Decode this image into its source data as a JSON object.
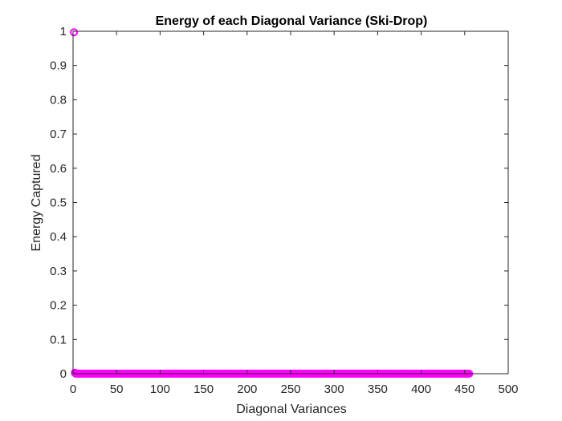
{
  "chart_data": {
    "type": "scatter",
    "title": "Energy of each Diagonal Variance (Ski-Drop)",
    "xlabel": "Diagonal Variances",
    "ylabel": "Energy Captured",
    "xlim": [
      0,
      500
    ],
    "ylim": [
      0,
      1
    ],
    "xticks": [
      0,
      50,
      100,
      150,
      200,
      250,
      300,
      350,
      400,
      450,
      500
    ],
    "yticks": [
      0,
      0.1,
      0.2,
      0.3,
      0.4,
      0.5,
      0.6,
      0.7,
      0.8,
      0.9,
      1
    ],
    "xtick_labels": [
      "0",
      "50",
      "100",
      "150",
      "200",
      "250",
      "300",
      "350",
      "400",
      "450",
      "500"
    ],
    "ytick_labels": [
      "0",
      "0.1",
      "0.2",
      "0.3",
      "0.4",
      "0.5",
      "0.6",
      "0.7",
      "0.8",
      "0.9",
      "1"
    ],
    "grid": false,
    "marker": "circle-open",
    "marker_color": "#ff00ff",
    "series": [
      {
        "x_start": 1,
        "x_end": 455,
        "y": [
          0.997,
          0.003,
          0,
          0,
          0,
          0,
          0,
          0,
          0,
          0,
          0,
          0,
          0,
          0,
          0,
          0,
          0,
          0,
          0,
          0,
          0,
          0,
          0,
          0,
          0,
          0,
          0,
          0,
          0,
          0,
          0,
          0,
          0,
          0,
          0,
          0,
          0,
          0,
          0,
          0,
          0,
          0,
          0,
          0,
          0,
          0,
          0,
          0,
          0,
          0,
          0,
          0,
          0,
          0,
          0,
          0,
          0,
          0,
          0,
          0,
          0,
          0,
          0,
          0,
          0,
          0,
          0,
          0,
          0,
          0,
          0,
          0,
          0,
          0,
          0,
          0,
          0,
          0,
          0,
          0,
          0,
          0,
          0,
          0,
          0,
          0,
          0,
          0,
          0,
          0,
          0,
          0,
          0,
          0,
          0,
          0,
          0,
          0,
          0,
          0,
          0,
          0,
          0,
          0,
          0,
          0,
          0,
          0,
          0,
          0,
          0,
          0,
          0,
          0,
          0,
          0,
          0,
          0,
          0,
          0,
          0,
          0,
          0,
          0,
          0,
          0,
          0,
          0,
          0,
          0,
          0,
          0,
          0,
          0,
          0,
          0,
          0,
          0,
          0,
          0,
          0,
          0,
          0,
          0,
          0,
          0,
          0,
          0,
          0,
          0,
          0,
          0,
          0,
          0,
          0,
          0,
          0,
          0,
          0,
          0,
          0,
          0,
          0,
          0,
          0,
          0,
          0,
          0,
          0,
          0,
          0,
          0,
          0,
          0,
          0,
          0,
          0,
          0,
          0,
          0,
          0,
          0,
          0,
          0,
          0,
          0,
          0,
          0,
          0,
          0,
          0,
          0,
          0,
          0,
          0,
          0,
          0,
          0,
          0,
          0,
          0,
          0,
          0,
          0,
          0,
          0,
          0,
          0,
          0,
          0,
          0,
          0,
          0,
          0,
          0,
          0,
          0,
          0,
          0,
          0,
          0,
          0,
          0,
          0,
          0,
          0,
          0,
          0,
          0,
          0,
          0,
          0,
          0,
          0,
          0,
          0,
          0,
          0,
          0,
          0,
          0,
          0,
          0,
          0,
          0,
          0,
          0,
          0,
          0,
          0,
          0,
          0,
          0,
          0,
          0,
          0,
          0,
          0,
          0,
          0,
          0,
          0,
          0,
          0,
          0,
          0,
          0,
          0,
          0,
          0,
          0,
          0,
          0,
          0,
          0,
          0,
          0,
          0,
          0,
          0,
          0,
          0,
          0,
          0,
          0,
          0,
          0,
          0,
          0,
          0,
          0,
          0,
          0,
          0,
          0,
          0,
          0,
          0,
          0,
          0,
          0,
          0,
          0,
          0,
          0,
          0,
          0,
          0,
          0,
          0,
          0,
          0,
          0,
          0,
          0,
          0,
          0,
          0,
          0,
          0,
          0,
          0,
          0,
          0,
          0,
          0,
          0,
          0,
          0,
          0,
          0,
          0,
          0,
          0,
          0,
          0,
          0,
          0,
          0,
          0,
          0,
          0,
          0,
          0,
          0,
          0,
          0,
          0,
          0,
          0,
          0,
          0,
          0,
          0,
          0,
          0,
          0,
          0,
          0,
          0,
          0,
          0,
          0,
          0,
          0,
          0,
          0,
          0,
          0,
          0,
          0,
          0,
          0,
          0,
          0,
          0,
          0,
          0,
          0,
          0,
          0,
          0,
          0,
          0,
          0,
          0,
          0,
          0,
          0,
          0,
          0,
          0,
          0,
          0,
          0,
          0,
          0,
          0,
          0,
          0,
          0,
          0,
          0,
          0,
          0,
          0,
          0,
          0,
          0,
          0,
          0,
          0,
          0,
          0,
          0,
          0,
          0,
          0,
          0,
          0,
          0,
          0,
          0,
          0,
          0,
          0,
          0,
          0,
          0,
          0,
          0,
          0,
          0,
          0,
          0,
          0,
          0,
          0,
          0,
          0,
          0,
          0,
          0,
          0,
          0
        ]
      }
    ]
  }
}
